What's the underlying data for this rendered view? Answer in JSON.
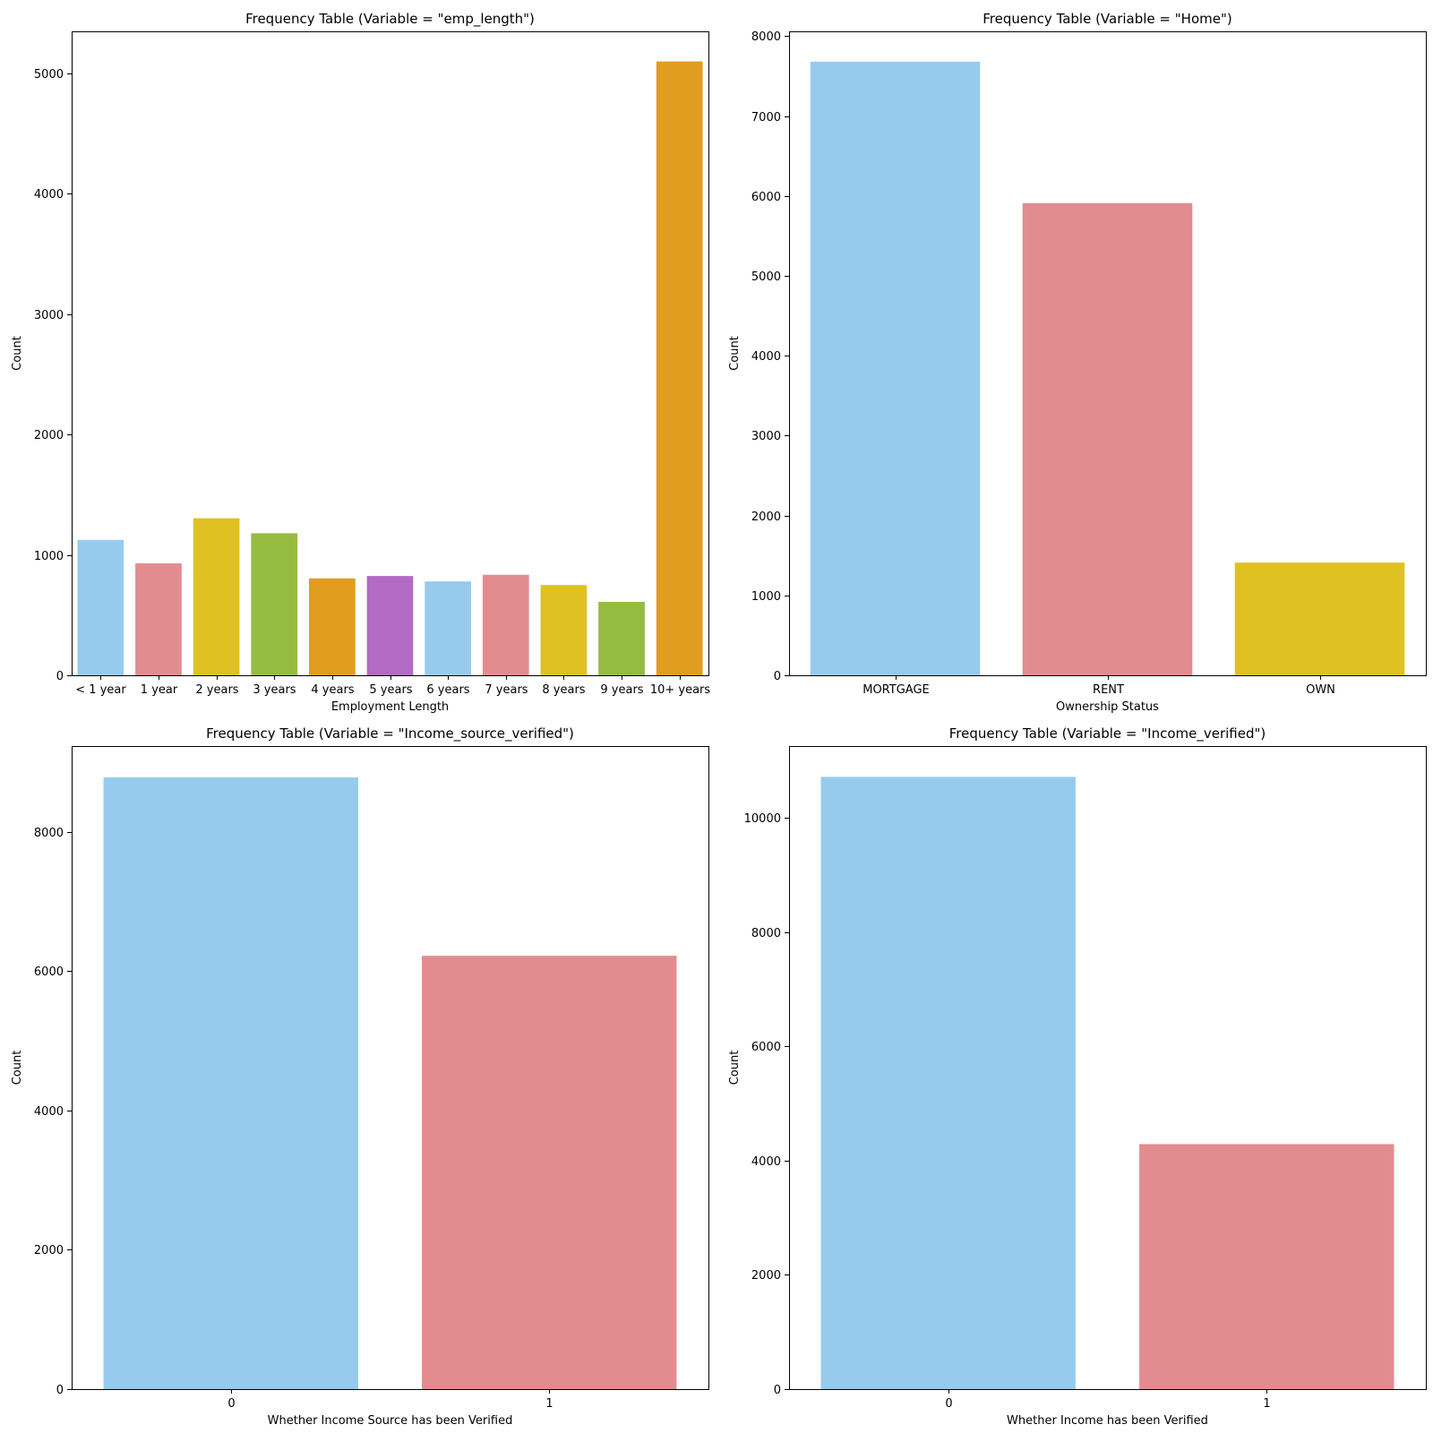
{
  "chart_data": [
    {
      "type": "bar",
      "title": "Frequency Table (Variable = \"emp_length\")",
      "xlabel": "Employment Length",
      "ylabel": "Count",
      "ylim": [
        0,
        5350
      ],
      "yticks": [
        0,
        1000,
        2000,
        3000,
        4000,
        5000
      ],
      "yticklabels": [
        "0",
        "1000",
        "2000",
        "3000",
        "4000",
        "5000"
      ],
      "categories": [
        "< 1 year",
        "1 year",
        "2 years",
        "3 years",
        "4 years",
        "5 years",
        "6 years",
        "7 years",
        "8 years",
        "9 years",
        "10+ years"
      ],
      "values": [
        1125,
        930,
        1305,
        1180,
        805,
        825,
        780,
        835,
        750,
        610,
        5100
      ],
      "colors": [
        "#97CBEE",
        "#E38C8F",
        "#DFC221",
        "#95BB41",
        "#E09D1F",
        "#B36AC4",
        "#97CBEE",
        "#E38C8F",
        "#DFC221",
        "#95BB41",
        "#E09D1F"
      ],
      "grid": false
    },
    {
      "type": "bar",
      "title": "Frequency Table (Variable = \"Home\")",
      "xlabel": "Ownership Status",
      "ylabel": "Count",
      "ylim": [
        0,
        8060
      ],
      "yticks": [
        0,
        1000,
        2000,
        3000,
        4000,
        5000,
        6000,
        7000,
        8000
      ],
      "yticklabels": [
        "0",
        "1000",
        "2000",
        "3000",
        "4000",
        "5000",
        "6000",
        "7000",
        "8000"
      ],
      "categories": [
        "MORTGAGE",
        "RENT",
        "OWN"
      ],
      "values": [
        7680,
        5910,
        1410
      ],
      "colors": [
        "#97CBEE",
        "#E38C8F",
        "#DFC221"
      ],
      "grid": false
    },
    {
      "type": "bar",
      "title": "Frequency Table (Variable = \"Income_source_verified\")",
      "xlabel": "Whether Income Source has been Verified",
      "ylabel": "Count",
      "ylim": [
        0,
        9230
      ],
      "yticks": [
        0,
        2000,
        4000,
        6000,
        8000
      ],
      "yticklabels": [
        "0",
        "2000",
        "4000",
        "6000",
        "8000"
      ],
      "categories": [
        "0",
        "1"
      ],
      "values": [
        8780,
        6220
      ],
      "colors": [
        "#97CBEE",
        "#E38C8F"
      ],
      "grid": false
    },
    {
      "type": "bar",
      "title": "Frequency Table (Variable = \"Income_verified\")",
      "xlabel": "Whether Income has been Verified",
      "ylabel": "Count",
      "ylim": [
        0,
        11260
      ],
      "yticks": [
        0,
        2000,
        4000,
        6000,
        8000,
        10000
      ],
      "yticklabels": [
        "0",
        "2000",
        "4000",
        "6000",
        "8000",
        "10000"
      ],
      "categories": [
        "0",
        "1"
      ],
      "values": [
        10720,
        4290
      ],
      "colors": [
        "#97CBEE",
        "#E38C8F"
      ],
      "grid": false
    }
  ]
}
